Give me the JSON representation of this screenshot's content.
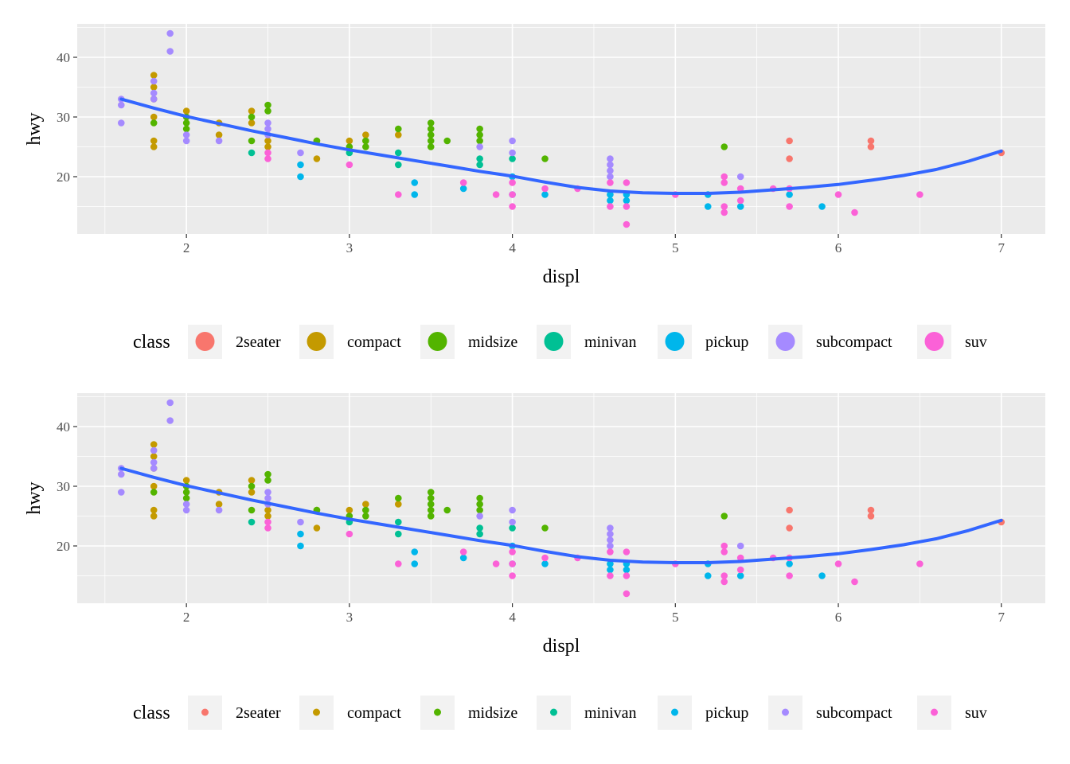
{
  "chart_data": [
    {
      "type": "scatter",
      "xlabel": "displ",
      "ylabel": "hwy",
      "xlim": [
        1.33,
        7.27
      ],
      "ylim": [
        10.4,
        45.6
      ],
      "x_ticks": [
        2,
        3,
        4,
        5,
        6,
        7
      ],
      "x_tick_labels": [
        "2",
        "3",
        "4",
        "5",
        "6",
        "7"
      ],
      "y_ticks": [
        20,
        30,
        40
      ],
      "y_tick_labels": [
        "20",
        "30",
        "40"
      ],
      "grid": true,
      "legend_title": "class",
      "legend_position": "bottom",
      "legend_key_size": "large",
      "series": [
        {
          "name": "2seater",
          "color": "#F8766D",
          "x": [
            5.7,
            5.7,
            6.2,
            6.2,
            7.0
          ],
          "y": [
            26,
            23,
            26,
            25,
            24
          ]
        },
        {
          "name": "compact",
          "color": "#C49A00",
          "x": [
            1.8,
            1.8,
            1.8,
            1.8,
            1.8,
            1.8,
            2.0,
            2.0,
            2.2,
            2.2,
            2.4,
            2.4,
            2.5,
            2.5,
            2.8,
            2.8,
            3.0,
            3.1,
            3.1,
            3.3
          ],
          "y": [
            37,
            35,
            33,
            30,
            26,
            25,
            31,
            30,
            29,
            27,
            31,
            29,
            26,
            25,
            26,
            23,
            26,
            27,
            26,
            27
          ]
        },
        {
          "name": "midsize",
          "color": "#53B400",
          "x": [
            1.8,
            2.0,
            2.0,
            2.0,
            2.4,
            2.4,
            2.5,
            2.5,
            2.8,
            3.0,
            3.1,
            3.1,
            3.3,
            3.5,
            3.5,
            3.5,
            3.5,
            3.5,
            3.6,
            3.8,
            3.8,
            3.8,
            4.2,
            5.3
          ],
          "y": [
            29,
            29,
            28,
            30,
            30,
            26,
            32,
            31,
            26,
            25,
            26,
            25,
            28,
            29,
            28,
            27,
            26,
            25,
            26,
            28,
            27,
            26,
            23,
            25
          ]
        },
        {
          "name": "minivan",
          "color": "#00C094",
          "x": [
            2.4,
            3.0,
            3.3,
            3.3,
            3.8,
            3.8,
            4.0
          ],
          "y": [
            24,
            24,
            24,
            22,
            23,
            22,
            23
          ]
        },
        {
          "name": "pickup",
          "color": "#00B6EB",
          "x": [
            2.7,
            2.7,
            3.4,
            3.4,
            3.7,
            4.0,
            4.0,
            4.2,
            4.6,
            4.6,
            4.7,
            4.7,
            5.2,
            5.2,
            5.4,
            5.7,
            5.9
          ],
          "y": [
            22,
            20,
            19,
            17,
            18,
            20,
            17,
            17,
            17,
            16,
            17,
            16,
            17,
            15,
            15,
            17,
            15
          ]
        },
        {
          "name": "subcompact",
          "color": "#A58AFF",
          "x": [
            1.6,
            1.6,
            1.6,
            1.8,
            1.8,
            1.8,
            1.9,
            1.9,
            2.0,
            2.0,
            2.2,
            2.5,
            2.5,
            2.5,
            2.7,
            3.8,
            4.0,
            4.0,
            4.6,
            4.6,
            4.6,
            4.6,
            5.4
          ],
          "y": [
            33,
            32,
            29,
            36,
            34,
            33,
            44,
            41,
            27,
            26,
            26,
            29,
            28,
            27,
            24,
            25,
            26,
            24,
            23,
            22,
            21,
            20,
            20
          ]
        },
        {
          "name": "suv",
          "color": "#FB61D7",
          "x": [
            2.5,
            2.5,
            3.0,
            3.3,
            3.7,
            3.9,
            4.0,
            4.0,
            4.0,
            4.2,
            4.4,
            4.6,
            4.6,
            4.7,
            4.7,
            4.7,
            5.0,
            5.3,
            5.3,
            5.3,
            5.3,
            5.4,
            5.4,
            5.6,
            5.7,
            5.7,
            6.0,
            6.1,
            6.5
          ],
          "y": [
            24,
            23,
            22,
            17,
            19,
            17,
            19,
            17,
            15,
            18,
            18,
            19,
            15,
            19,
            15,
            12,
            17,
            20,
            19,
            15,
            14,
            18,
            16,
            18,
            18,
            15,
            17,
            14,
            17
          ]
        },
        {
          "name": "",
          "color": "#3366FF",
          "type": "line",
          "x": [
            1.6,
            1.8,
            2.0,
            2.2,
            2.4,
            2.6,
            2.8,
            3.0,
            3.2,
            3.4,
            3.6,
            3.8,
            4.0,
            4.2,
            4.4,
            4.6,
            4.8,
            5.0,
            5.2,
            5.4,
            5.6,
            5.8,
            6.0,
            6.2,
            6.4,
            6.6,
            6.8,
            7.0
          ],
          "y": [
            33.0,
            31.5,
            30.1,
            28.9,
            27.7,
            26.6,
            25.5,
            24.5,
            23.6,
            22.7,
            21.8,
            20.9,
            20.1,
            19.1,
            18.2,
            17.6,
            17.3,
            17.2,
            17.2,
            17.4,
            17.8,
            18.2,
            18.7,
            19.4,
            20.2,
            21.2,
            22.6,
            24.3
          ]
        }
      ]
    },
    {
      "type": "scatter",
      "xlabel": "displ",
      "ylabel": "hwy",
      "xlim": [
        1.33,
        7.27
      ],
      "ylim": [
        10.4,
        45.6
      ],
      "x_ticks": [
        2,
        3,
        4,
        5,
        6,
        7
      ],
      "x_tick_labels": [
        "2",
        "3",
        "4",
        "5",
        "6",
        "7"
      ],
      "y_ticks": [
        20,
        30,
        40
      ],
      "y_tick_labels": [
        "20",
        "30",
        "40"
      ],
      "grid": true,
      "legend_title": "class",
      "legend_position": "bottom",
      "legend_key_size": "small",
      "series": [
        {
          "name": "2seater",
          "color": "#F8766D",
          "x": [
            5.7,
            5.7,
            6.2,
            6.2,
            7.0
          ],
          "y": [
            26,
            23,
            26,
            25,
            24
          ]
        },
        {
          "name": "compact",
          "color": "#C49A00",
          "x": [
            1.8,
            1.8,
            1.8,
            1.8,
            1.8,
            1.8,
            2.0,
            2.0,
            2.2,
            2.2,
            2.4,
            2.4,
            2.5,
            2.5,
            2.8,
            2.8,
            3.0,
            3.1,
            3.1,
            3.3
          ],
          "y": [
            37,
            35,
            33,
            30,
            26,
            25,
            31,
            30,
            29,
            27,
            31,
            29,
            26,
            25,
            26,
            23,
            26,
            27,
            26,
            27
          ]
        },
        {
          "name": "midsize",
          "color": "#53B400",
          "x": [
            1.8,
            2.0,
            2.0,
            2.0,
            2.4,
            2.4,
            2.5,
            2.5,
            2.8,
            3.0,
            3.1,
            3.1,
            3.3,
            3.5,
            3.5,
            3.5,
            3.5,
            3.5,
            3.6,
            3.8,
            3.8,
            3.8,
            4.2,
            5.3
          ],
          "y": [
            29,
            29,
            28,
            30,
            30,
            26,
            32,
            31,
            26,
            25,
            26,
            25,
            28,
            29,
            28,
            27,
            26,
            25,
            26,
            28,
            27,
            26,
            23,
            25
          ]
        },
        {
          "name": "minivan",
          "color": "#00C094",
          "x": [
            2.4,
            3.0,
            3.3,
            3.3,
            3.8,
            3.8,
            4.0
          ],
          "y": [
            24,
            24,
            24,
            22,
            23,
            22,
            23
          ]
        },
        {
          "name": "pickup",
          "color": "#00B6EB",
          "x": [
            2.7,
            2.7,
            3.4,
            3.4,
            3.7,
            4.0,
            4.0,
            4.2,
            4.6,
            4.6,
            4.7,
            4.7,
            5.2,
            5.2,
            5.4,
            5.7,
            5.9
          ],
          "y": [
            22,
            20,
            19,
            17,
            18,
            20,
            17,
            17,
            17,
            16,
            17,
            16,
            17,
            15,
            15,
            17,
            15
          ]
        },
        {
          "name": "subcompact",
          "color": "#A58AFF",
          "x": [
            1.6,
            1.6,
            1.6,
            1.8,
            1.8,
            1.8,
            1.9,
            1.9,
            2.0,
            2.0,
            2.2,
            2.5,
            2.5,
            2.5,
            2.7,
            3.8,
            4.0,
            4.0,
            4.6,
            4.6,
            4.6,
            4.6,
            5.4
          ],
          "y": [
            33,
            32,
            29,
            36,
            34,
            33,
            44,
            41,
            27,
            26,
            26,
            29,
            28,
            27,
            24,
            25,
            26,
            24,
            23,
            22,
            21,
            20,
            20
          ]
        },
        {
          "name": "suv",
          "color": "#FB61D7",
          "x": [
            2.5,
            2.5,
            3.0,
            3.3,
            3.7,
            3.9,
            4.0,
            4.0,
            4.0,
            4.2,
            4.4,
            4.6,
            4.6,
            4.7,
            4.7,
            4.7,
            5.0,
            5.3,
            5.3,
            5.3,
            5.3,
            5.4,
            5.4,
            5.6,
            5.7,
            5.7,
            6.0,
            6.1,
            6.5
          ],
          "y": [
            24,
            23,
            22,
            17,
            19,
            17,
            19,
            17,
            15,
            18,
            18,
            19,
            15,
            19,
            15,
            12,
            17,
            20,
            19,
            15,
            14,
            18,
            16,
            18,
            18,
            15,
            17,
            14,
            17
          ]
        },
        {
          "name": "",
          "color": "#3366FF",
          "type": "line",
          "x": [
            1.6,
            1.8,
            2.0,
            2.2,
            2.4,
            2.6,
            2.8,
            3.0,
            3.2,
            3.4,
            3.6,
            3.8,
            4.0,
            4.2,
            4.4,
            4.6,
            4.8,
            5.0,
            5.2,
            5.4,
            5.6,
            5.8,
            6.0,
            6.2,
            6.4,
            6.6,
            6.8,
            7.0
          ],
          "y": [
            33.0,
            31.5,
            30.1,
            28.9,
            27.7,
            26.6,
            25.5,
            24.5,
            23.6,
            22.7,
            21.8,
            20.9,
            20.1,
            19.1,
            18.2,
            17.6,
            17.3,
            17.2,
            17.2,
            17.4,
            17.8,
            18.2,
            18.7,
            19.4,
            20.2,
            21.2,
            22.6,
            24.3
          ]
        }
      ]
    }
  ]
}
